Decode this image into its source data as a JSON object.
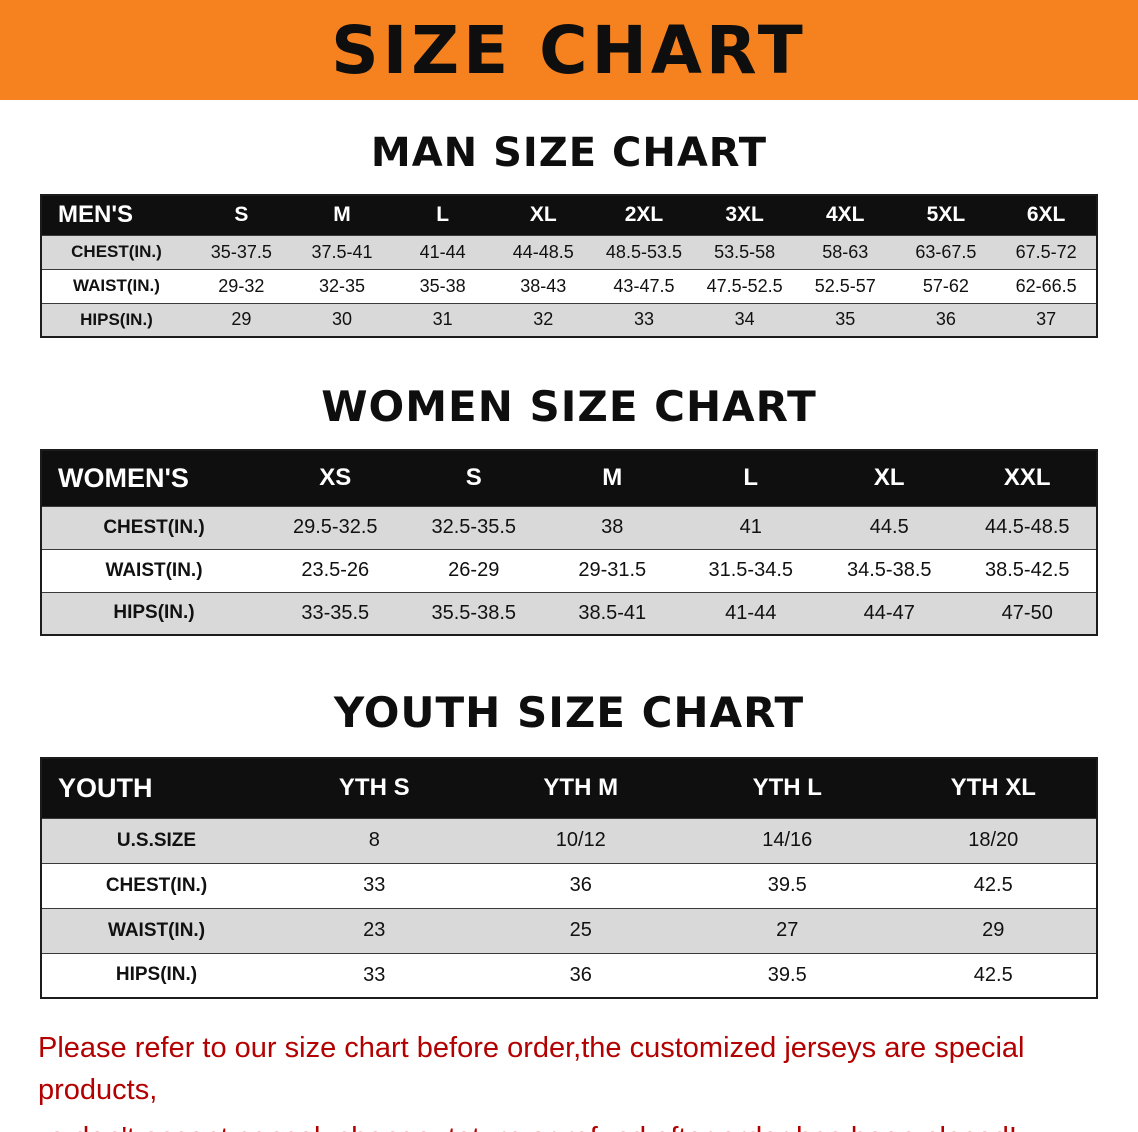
{
  "banner": {
    "title": "SIZE CHART",
    "bg_color": "#F5821F",
    "text_color": "#0e0e0e"
  },
  "tables": [
    {
      "heading": "MAN SIZE CHART",
      "label": "MEN'S",
      "columns": [
        "S",
        "M",
        "L",
        "XL",
        "2XL",
        "3XL",
        "4XL",
        "5XL",
        "6XL"
      ],
      "rows": [
        {
          "label": "CHEST(IN.)",
          "values": [
            "35-37.5",
            "37.5-41",
            "41-44",
            "44-48.5",
            "48.5-53.5",
            "53.5-58",
            "58-63",
            "63-67.5",
            "67.5-72"
          ]
        },
        {
          "label": "WAIST(IN.)",
          "values": [
            "29-32",
            "32-35",
            "35-38",
            "38-43",
            "43-47.5",
            "47.5-52.5",
            "52.5-57",
            "57-62",
            "62-66.5"
          ]
        },
        {
          "label": "HIPS(IN.)",
          "values": [
            "29",
            "30",
            "31",
            "32",
            "33",
            "34",
            "35",
            "36",
            "37"
          ]
        }
      ]
    },
    {
      "heading": "WOMEN SIZE CHART",
      "label": "WOMEN'S",
      "columns": [
        "XS",
        "S",
        "M",
        "L",
        "XL",
        "XXL"
      ],
      "rows": [
        {
          "label": "CHEST(IN.)",
          "values": [
            "29.5-32.5",
            "32.5-35.5",
            "38",
            "41",
            "44.5",
            "44.5-48.5"
          ]
        },
        {
          "label": "WAIST(IN.)",
          "values": [
            "23.5-26",
            "26-29",
            "29-31.5",
            "31.5-34.5",
            "34.5-38.5",
            "38.5-42.5"
          ]
        },
        {
          "label": "HIPS(IN.)",
          "values": [
            "33-35.5",
            "35.5-38.5",
            "38.5-41",
            "41-44",
            "44-47",
            "47-50"
          ]
        }
      ]
    },
    {
      "heading": "YOUTH SIZE CHART",
      "label": "YOUTH",
      "columns": [
        "YTH S",
        "YTH M",
        "YTH L",
        "YTH XL"
      ],
      "rows": [
        {
          "label": "U.S.SIZE",
          "values": [
            "8",
            "10/12",
            "14/16",
            "18/20"
          ]
        },
        {
          "label": "CHEST(IN.)",
          "values": [
            "33",
            "36",
            "39.5",
            "42.5"
          ]
        },
        {
          "label": "WAIST(IN.)",
          "values": [
            "23",
            "25",
            "27",
            "29"
          ]
        },
        {
          "label": "HIPS(IN.)",
          "values": [
            "33",
            "36",
            "39.5",
            "42.5"
          ]
        }
      ]
    }
  ],
  "disclaimer": {
    "line1": "Please refer to our size chart before order,the customized jerseys are special products,",
    "line2": "we don't accept cancel, change, teturn or refund after order has been placed!",
    "text_color": "#b30000"
  }
}
